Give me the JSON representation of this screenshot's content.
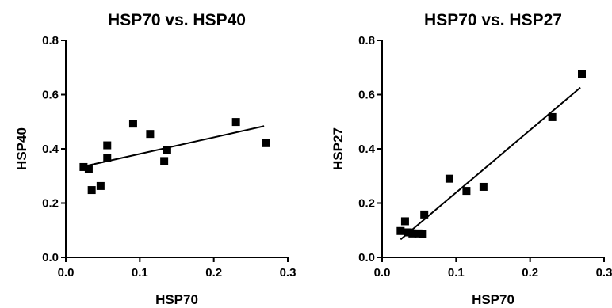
{
  "chart_data": [
    {
      "type": "scatter",
      "title": "HSP70 vs. HSP40",
      "xlabel": "HSP70",
      "ylabel": "HSP40",
      "xlim": [
        0.0,
        0.3
      ],
      "ylim": [
        0.0,
        0.8
      ],
      "x_ticks": [
        "0.0",
        "0.1",
        "0.2",
        "0.3"
      ],
      "y_ticks": [
        "0.0",
        "0.2",
        "0.4",
        "0.6",
        "0.8"
      ],
      "grid": false,
      "legend": "none",
      "marker": "square",
      "points": [
        {
          "x": 0.024,
          "y": 0.333
        },
        {
          "x": 0.031,
          "y": 0.325
        },
        {
          "x": 0.035,
          "y": 0.248
        },
        {
          "x": 0.047,
          "y": 0.263
        },
        {
          "x": 0.056,
          "y": 0.413
        },
        {
          "x": 0.056,
          "y": 0.366
        },
        {
          "x": 0.091,
          "y": 0.493
        },
        {
          "x": 0.114,
          "y": 0.455
        },
        {
          "x": 0.133,
          "y": 0.355
        },
        {
          "x": 0.137,
          "y": 0.397
        },
        {
          "x": 0.23,
          "y": 0.499
        },
        {
          "x": 0.27,
          "y": 0.421
        }
      ],
      "fit_line": [
        {
          "x": 0.024,
          "y": 0.335
        },
        {
          "x": 0.268,
          "y": 0.484
        }
      ]
    },
    {
      "type": "scatter",
      "title": "HSP70 vs. HSP27",
      "xlabel": "HSP70",
      "ylabel": "HSP27",
      "xlim": [
        0.0,
        0.3
      ],
      "ylim": [
        0.0,
        0.8
      ],
      "x_ticks": [
        "0.0",
        "0.1",
        "0.2",
        "0.3"
      ],
      "y_ticks": [
        "0.0",
        "0.2",
        "0.4",
        "0.6",
        "0.8"
      ],
      "grid": false,
      "legend": "none",
      "marker": "square",
      "points": [
        {
          "x": 0.025,
          "y": 0.097
        },
        {
          "x": 0.031,
          "y": 0.133
        },
        {
          "x": 0.035,
          "y": 0.092
        },
        {
          "x": 0.041,
          "y": 0.088
        },
        {
          "x": 0.049,
          "y": 0.088
        },
        {
          "x": 0.055,
          "y": 0.085
        },
        {
          "x": 0.057,
          "y": 0.158
        },
        {
          "x": 0.091,
          "y": 0.29
        },
        {
          "x": 0.114,
          "y": 0.245
        },
        {
          "x": 0.137,
          "y": 0.26
        },
        {
          "x": 0.23,
          "y": 0.517
        },
        {
          "x": 0.27,
          "y": 0.675
        }
      ],
      "fit_line": [
        {
          "x": 0.025,
          "y": 0.066
        },
        {
          "x": 0.268,
          "y": 0.626
        }
      ]
    }
  ]
}
